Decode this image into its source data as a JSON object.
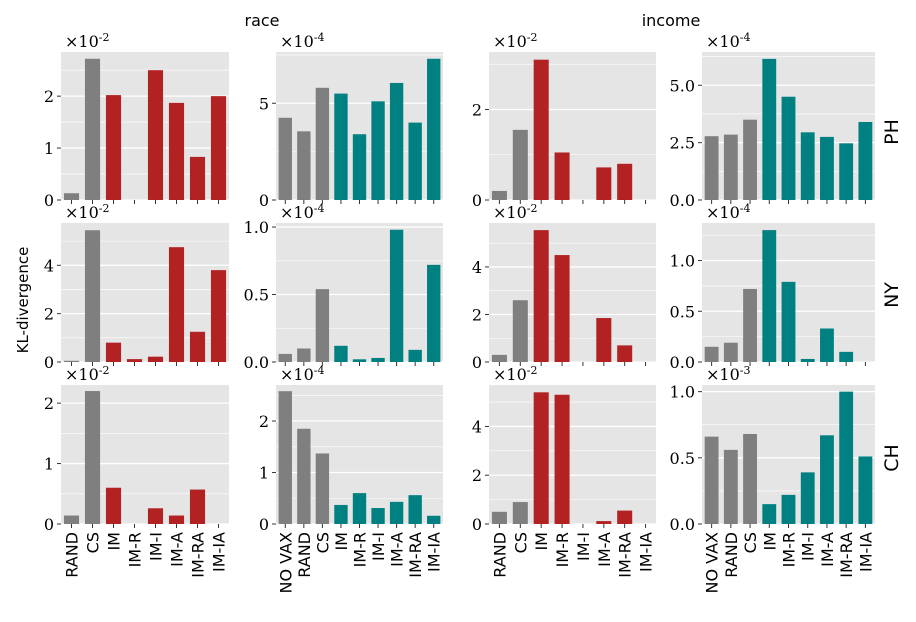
{
  "figure": {
    "column_titles": [
      "race",
      "income"
    ],
    "row_labels": [
      "PH",
      "NY",
      "CH"
    ],
    "ylabel": "KL-divergence"
  },
  "colors": {
    "baseline": "#7f7f7f",
    "race_method": "#b22222",
    "income_method": "#008080",
    "panel_bg": "#e5e5e5",
    "grid": "#ffffff"
  },
  "chart_data": [
    {
      "type": "bar",
      "row": "PH",
      "column": "race",
      "categories": [
        "RAND",
        "CS",
        "IM",
        "IM-R",
        "IM-I",
        "IM-A",
        "IM-RA",
        "IM-IA"
      ],
      "values": [
        0.13,
        2.72,
        2.02,
        0,
        2.5,
        1.87,
        0.83,
        2.0
      ],
      "exponent": "-2",
      "ylim": [
        0,
        2.85
      ],
      "yticks": [
        0,
        1,
        2
      ],
      "ytick_labels": [
        "0",
        "1",
        "2"
      ],
      "method_color": "race_method",
      "n_baseline": 2
    },
    {
      "type": "bar",
      "row": "PH",
      "column": "race",
      "categories": [
        "NO VAX",
        "RAND",
        "CS",
        "IM",
        "IM-R",
        "IM-I",
        "IM-A",
        "IM-RA",
        "IM-IA"
      ],
      "values": [
        4.25,
        3.55,
        5.8,
        5.5,
        3.4,
        5.1,
        6.05,
        4.0,
        7.3
      ],
      "exponent": "-4",
      "ylim": [
        0,
        7.65
      ],
      "yticks": [
        0,
        5
      ],
      "ytick_labels": [
        "0",
        "5"
      ],
      "method_color": "income_method",
      "n_baseline": 3
    },
    {
      "type": "bar",
      "row": "PH",
      "column": "income",
      "categories": [
        "RAND",
        "CS",
        "IM",
        "IM-R",
        "IM-I",
        "IM-A",
        "IM-RA",
        "IM-IA"
      ],
      "values": [
        0.2,
        1.55,
        3.1,
        1.05,
        0,
        0.72,
        0.8,
        0
      ],
      "exponent": "-2",
      "ylim": [
        0,
        3.27
      ],
      "yticks": [
        0,
        2
      ],
      "ytick_labels": [
        "0",
        "2"
      ],
      "method_color": "race_method",
      "n_baseline": 2
    },
    {
      "type": "bar",
      "row": "PH",
      "column": "income",
      "categories": [
        "NO VAX",
        "RAND",
        "CS",
        "IM",
        "IM-R",
        "IM-I",
        "IM-A",
        "IM-RA",
        "IM-IA"
      ],
      "values": [
        2.78,
        2.85,
        3.5,
        6.15,
        4.5,
        2.95,
        2.75,
        2.47,
        3.4
      ],
      "exponent": "-4",
      "ylim": [
        0,
        6.45
      ],
      "yticks": [
        0,
        2.5,
        5
      ],
      "ytick_labels": [
        "0.0",
        "2.5",
        "5.0"
      ],
      "method_color": "income_method",
      "n_baseline": 3
    },
    {
      "type": "bar",
      "row": "NY",
      "column": "race",
      "categories": [
        "RAND",
        "CS",
        "IM",
        "IM-R",
        "IM-I",
        "IM-A",
        "IM-RA",
        "IM-IA"
      ],
      "values": [
        0.05,
        5.45,
        0.8,
        0.12,
        0.22,
        4.75,
        1.25,
        3.8
      ],
      "exponent": "-2",
      "ylim": [
        0,
        5.75
      ],
      "yticks": [
        0,
        2,
        4
      ],
      "ytick_labels": [
        "0",
        "2",
        "4"
      ],
      "method_color": "race_method",
      "n_baseline": 2
    },
    {
      "type": "bar",
      "row": "NY",
      "column": "race",
      "categories": [
        "NO VAX",
        "RAND",
        "CS",
        "IM",
        "IM-R",
        "IM-I",
        "IM-A",
        "IM-RA",
        "IM-IA"
      ],
      "values": [
        0.06,
        0.1,
        0.54,
        0.12,
        0.02,
        0.03,
        0.98,
        0.09,
        0.72
      ],
      "exponent": "-4",
      "ylim": [
        0,
        1.03
      ],
      "yticks": [
        0,
        0.5,
        1
      ],
      "ytick_labels": [
        "0.0",
        "0.5",
        "1.0"
      ],
      "method_color": "income_method",
      "n_baseline": 3
    },
    {
      "type": "bar",
      "row": "NY",
      "column": "income",
      "categories": [
        "RAND",
        "CS",
        "IM",
        "IM-R",
        "IM-I",
        "IM-A",
        "IM-RA",
        "IM-IA"
      ],
      "values": [
        0.3,
        2.6,
        5.55,
        4.5,
        0,
        1.85,
        0.7,
        0
      ],
      "exponent": "-2",
      "ylim": [
        0,
        5.85
      ],
      "yticks": [
        0,
        2,
        4
      ],
      "ytick_labels": [
        "0",
        "2",
        "4"
      ],
      "method_color": "race_method",
      "n_baseline": 2
    },
    {
      "type": "bar",
      "row": "NY",
      "column": "income",
      "categories": [
        "NO VAX",
        "RAND",
        "CS",
        "IM",
        "IM-R",
        "IM-I",
        "IM-A",
        "IM-RA",
        "IM-IA"
      ],
      "values": [
        0.15,
        0.19,
        0.72,
        1.3,
        0.79,
        0.03,
        0.33,
        0.1,
        0
      ],
      "exponent": "-4",
      "ylim": [
        0,
        1.37
      ],
      "yticks": [
        0,
        0.5,
        1
      ],
      "ytick_labels": [
        "0.0",
        "0.5",
        "1.0"
      ],
      "method_color": "income_method",
      "n_baseline": 3
    },
    {
      "type": "bar",
      "row": "CH",
      "column": "race",
      "categories": [
        "RAND",
        "CS",
        "IM",
        "IM-R",
        "IM-I",
        "IM-A",
        "IM-RA",
        "IM-IA"
      ],
      "values": [
        0.14,
        2.2,
        0.6,
        0,
        0.26,
        0.14,
        0.57,
        0
      ],
      "exponent": "-2",
      "ylim": [
        0,
        2.3
      ],
      "yticks": [
        0,
        1,
        2
      ],
      "ytick_labels": [
        "0",
        "1",
        "2"
      ],
      "method_color": "race_method",
      "n_baseline": 2
    },
    {
      "type": "bar",
      "row": "CH",
      "column": "race",
      "categories": [
        "NO VAX",
        "RAND",
        "CS",
        "IM",
        "IM-R",
        "IM-I",
        "IM-A",
        "IM-RA",
        "IM-IA"
      ],
      "values": [
        2.58,
        1.85,
        1.37,
        0.37,
        0.6,
        0.31,
        0.43,
        0.56,
        0.16
      ],
      "exponent": "-4",
      "ylim": [
        0,
        2.7
      ],
      "yticks": [
        0,
        1,
        2
      ],
      "ytick_labels": [
        "0",
        "1",
        "2"
      ],
      "method_color": "income_method",
      "n_baseline": 3
    },
    {
      "type": "bar",
      "row": "CH",
      "column": "income",
      "categories": [
        "RAND",
        "CS",
        "IM",
        "IM-R",
        "IM-I",
        "IM-A",
        "IM-RA",
        "IM-IA"
      ],
      "values": [
        0.5,
        0.9,
        5.4,
        5.3,
        0,
        0.12,
        0.55,
        0
      ],
      "exponent": "-2",
      "ylim": [
        0,
        5.7
      ],
      "yticks": [
        0,
        2,
        4
      ],
      "ytick_labels": [
        "0",
        "2",
        "4"
      ],
      "method_color": "race_method",
      "n_baseline": 2
    },
    {
      "type": "bar",
      "row": "CH",
      "column": "income",
      "categories": [
        "NO VAX",
        "RAND",
        "CS",
        "IM",
        "IM-R",
        "IM-I",
        "IM-A",
        "IM-RA",
        "IM-IA"
      ],
      "values": [
        0.66,
        0.56,
        0.68,
        0.15,
        0.22,
        0.39,
        0.67,
        1.0,
        0.51
      ],
      "exponent": "-3",
      "ylim": [
        0,
        1.05
      ],
      "yticks": [
        0,
        0.5,
        1
      ],
      "ytick_labels": [
        "0.0",
        "0.5",
        "1.0"
      ],
      "method_color": "income_method",
      "n_baseline": 3
    }
  ]
}
